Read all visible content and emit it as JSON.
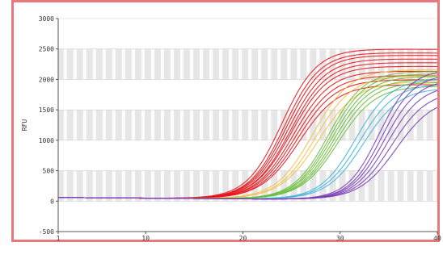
{
  "chart_data": {
    "type": "line",
    "title": "",
    "xlabel": "",
    "ylabel": "RFU",
    "xlim": [
      1,
      40
    ],
    "ylim": [
      -500,
      3000
    ],
    "x_ticks": [
      1,
      10,
      20,
      30,
      40
    ],
    "y_ticks": [
      -500,
      0,
      500,
      1000,
      1500,
      2000,
      2500,
      3000
    ],
    "grid": true,
    "legend": "none",
    "series": [
      {
        "color": "#e8141c",
        "ct": 24.0,
        "plateau": 2480,
        "k": 0.55
      },
      {
        "color": "#e8141c",
        "ct": 24.3,
        "plateau": 2420,
        "k": 0.55
      },
      {
        "color": "#e8141c",
        "ct": 24.5,
        "plateau": 2380,
        "k": 0.54
      },
      {
        "color": "#e8141c",
        "ct": 24.7,
        "plateau": 2320,
        "k": 0.53
      },
      {
        "color": "#e8141c",
        "ct": 24.9,
        "plateau": 2260,
        "k": 0.53
      },
      {
        "color": "#e8141c",
        "ct": 25.0,
        "plateau": 2200,
        "k": 0.52
      },
      {
        "color": "#e8141c",
        "ct": 25.2,
        "plateau": 2120,
        "k": 0.52
      },
      {
        "color": "#e8141c",
        "ct": 25.4,
        "plateau": 2050,
        "k": 0.51
      },
      {
        "color": "#e8141c",
        "ct": 25.6,
        "plateau": 1980,
        "k": 0.51
      },
      {
        "color": "#e8141c",
        "ct": 25.8,
        "plateau": 1900,
        "k": 0.5
      },
      {
        "color": "#f2c24a",
        "ct": 27.2,
        "plateau": 2150,
        "k": 0.52
      },
      {
        "color": "#f2c24a",
        "ct": 27.5,
        "plateau": 2050,
        "k": 0.52
      },
      {
        "color": "#f2c24a",
        "ct": 27.8,
        "plateau": 1950,
        "k": 0.5
      },
      {
        "color": "#6abf3a",
        "ct": 28.8,
        "plateau": 2120,
        "k": 0.55
      },
      {
        "color": "#6abf3a",
        "ct": 29.0,
        "plateau": 2080,
        "k": 0.55
      },
      {
        "color": "#6abf3a",
        "ct": 29.2,
        "plateau": 2040,
        "k": 0.54
      },
      {
        "color": "#6abf3a",
        "ct": 29.4,
        "plateau": 1990,
        "k": 0.54
      },
      {
        "color": "#6abf3a",
        "ct": 29.6,
        "plateau": 1940,
        "k": 0.53
      },
      {
        "color": "#6abf3a",
        "ct": 29.8,
        "plateau": 1880,
        "k": 0.52
      },
      {
        "color": "#3fb4dc",
        "ct": 31.6,
        "plateau": 2000,
        "k": 0.55
      },
      {
        "color": "#3fb4dc",
        "ct": 32.0,
        "plateau": 1920,
        "k": 0.54
      },
      {
        "color": "#3fb4dc",
        "ct": 32.4,
        "plateau": 1850,
        "k": 0.53
      },
      {
        "color": "#7a3db8",
        "ct": 34.0,
        "plateau": 2160,
        "k": 0.6
      },
      {
        "color": "#7a3db8",
        "ct": 34.3,
        "plateau": 2080,
        "k": 0.6
      },
      {
        "color": "#7a3db8",
        "ct": 34.6,
        "plateau": 2000,
        "k": 0.58
      },
      {
        "color": "#7a3db8",
        "ct": 34.9,
        "plateau": 1900,
        "k": 0.57
      },
      {
        "color": "#7a3db8",
        "ct": 35.3,
        "plateau": 1800,
        "k": 0.55
      },
      {
        "color": "#7a3db8",
        "ct": 35.8,
        "plateau": 1700,
        "k": 0.52
      }
    ]
  }
}
